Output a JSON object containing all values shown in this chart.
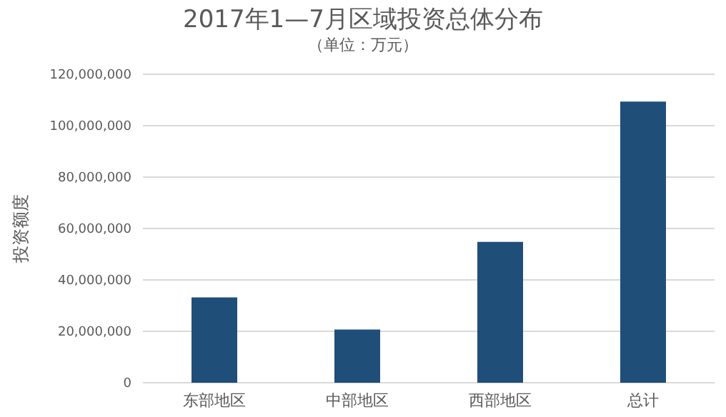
{
  "chart_data": {
    "type": "bar",
    "title": "2017年1—7月区域投资总体分布",
    "subtitle": "（单位：万元）",
    "ylabel": "投资额度",
    "categories": [
      "东部地区",
      "中部地区",
      "西部地区",
      "总计"
    ],
    "values": [
      33200000,
      20700000,
      54800000,
      109400000
    ],
    "color": "#1f4e79",
    "ylim": [
      0,
      120000000
    ],
    "yticks": [
      0,
      {
        "value": 20000000,
        "label": "20,000,000"
      },
      {
        "value": 40000000,
        "label": "40,000,000"
      },
      {
        "value": 60000000,
        "label": "60,000,000"
      },
      {
        "value": 80000000,
        "label": "80,000,000"
      },
      {
        "value": 100000000,
        "label": "100,000,000"
      },
      {
        "value": 120000000,
        "label": "120,000,000"
      }
    ],
    "grid": "y"
  }
}
